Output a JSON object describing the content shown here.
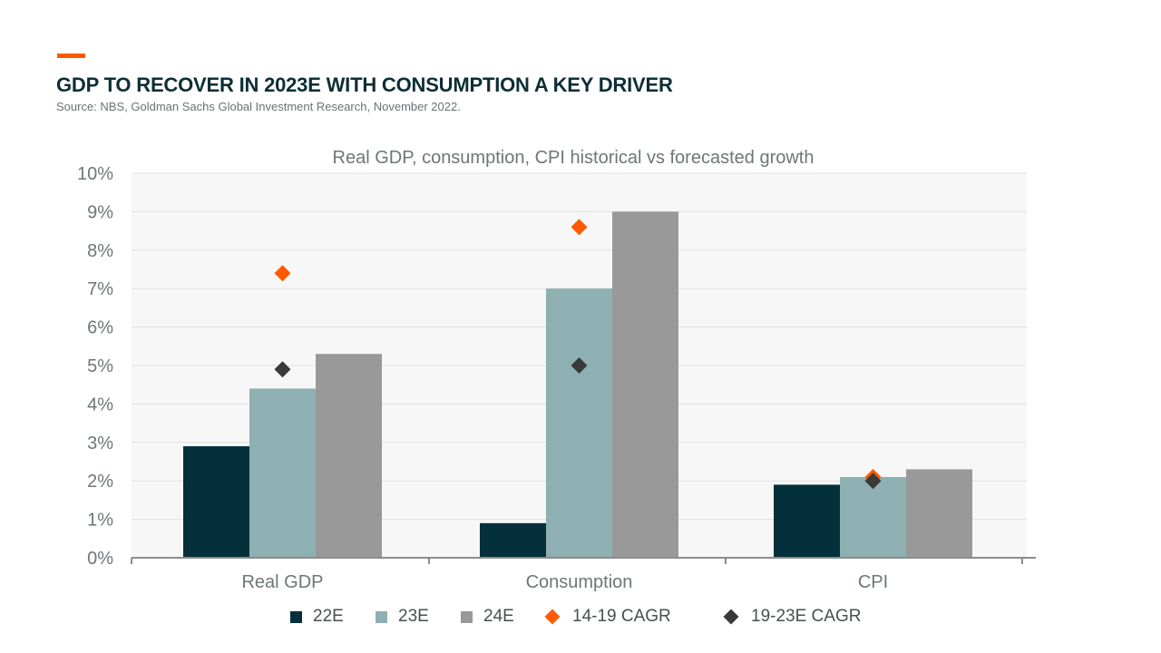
{
  "header": {
    "title": "GDP TO RECOVER IN 2023E WITH CONSUMPTION A KEY DRIVER",
    "source": "Source: NBS, Goldman Sachs Global Investment Research, November 2022."
  },
  "colors": {
    "accent": "#ff5a00",
    "title": "#0d2e35",
    "series_22E": "#03303a",
    "series_23E": "#8eb0b2",
    "series_24E": "#999999",
    "cagr_14_19": "#ff5a00",
    "cagr_19_23E": "#3a3a3a"
  },
  "chart_data": {
    "type": "bar",
    "title": "Real GDP, consumption, CPI historical vs forecasted growth",
    "categories": [
      "Real GDP",
      "Consumption",
      "CPI"
    ],
    "ylim": [
      0,
      10
    ],
    "yticks": [
      "0%",
      "1%",
      "2%",
      "3%",
      "4%",
      "5%",
      "6%",
      "7%",
      "8%",
      "9%",
      "10%"
    ],
    "grid": true,
    "legend_position": "bottom",
    "series": [
      {
        "name": "22E",
        "type": "bar",
        "values": [
          2.9,
          0.9,
          1.9
        ]
      },
      {
        "name": "23E",
        "type": "bar",
        "values": [
          4.4,
          7.0,
          2.1
        ]
      },
      {
        "name": "24E",
        "type": "bar",
        "values": [
          5.3,
          9.0,
          2.3
        ]
      },
      {
        "name": "14-19 CAGR",
        "type": "marker",
        "values": [
          7.4,
          8.6,
          2.1
        ]
      },
      {
        "name": "19-23E CAGR",
        "type": "marker",
        "values": [
          4.9,
          5.0,
          2.0
        ]
      }
    ]
  }
}
